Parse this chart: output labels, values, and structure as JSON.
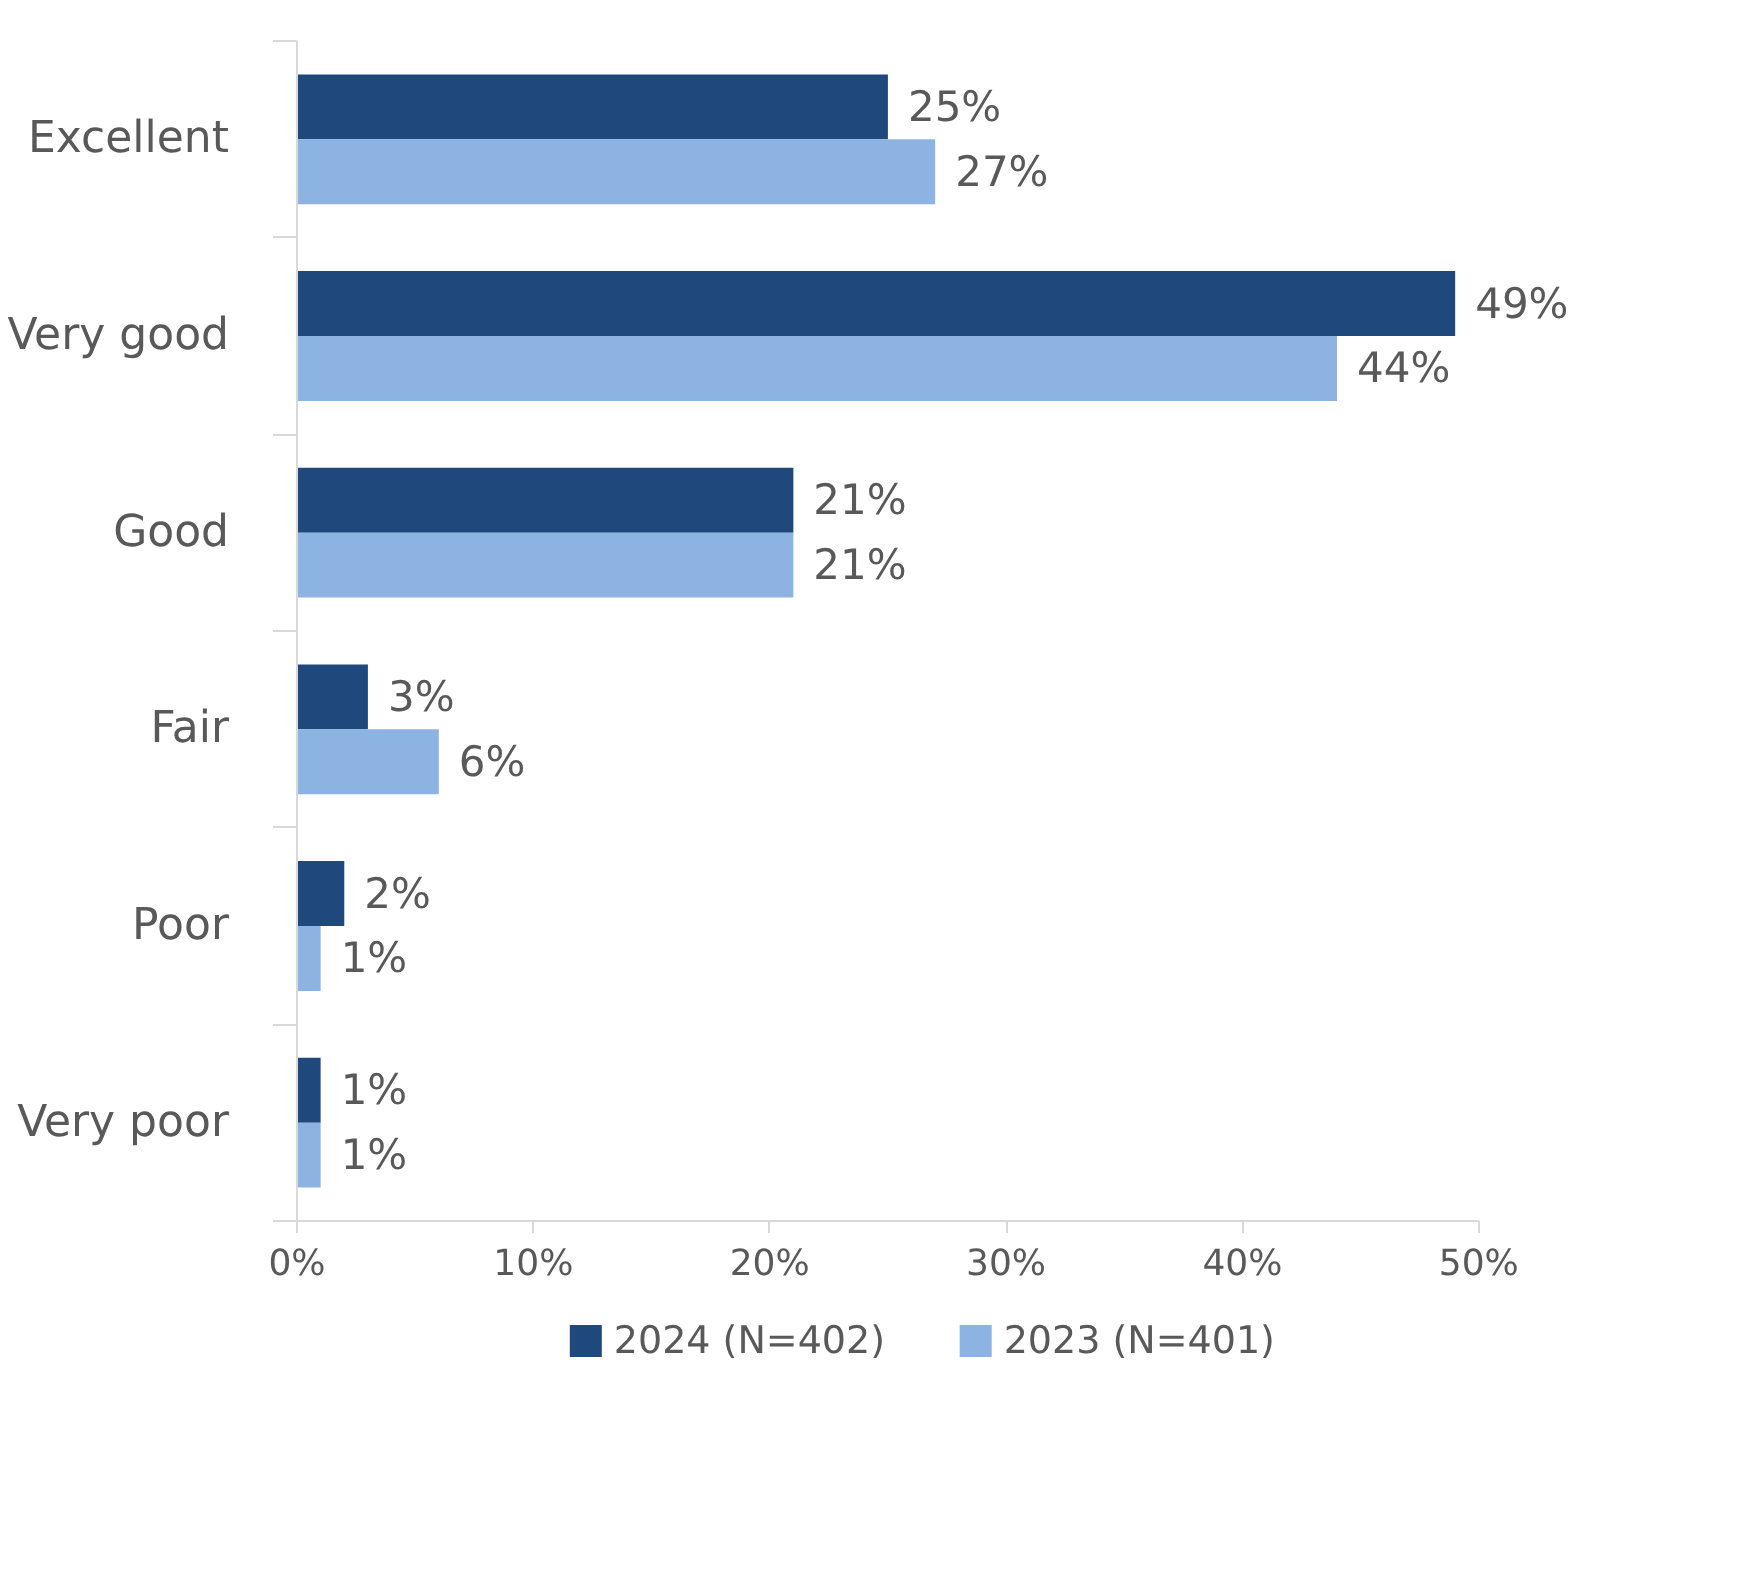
{
  "chart_data": {
    "type": "bar",
    "orientation": "horizontal",
    "categories": [
      "Excellent",
      "Very good",
      "Good",
      "Fair",
      "Poor",
      "Very poor"
    ],
    "series": [
      {
        "name": "2024 (N=402)",
        "color": "#1f497d",
        "values": [
          25,
          49,
          21,
          3,
          2,
          1
        ],
        "value_labels": [
          "25%",
          "49%",
          "21%",
          "3%",
          "2%",
          "1%"
        ]
      },
      {
        "name": "2023 (N=401)",
        "color": "#8db3e2",
        "values": [
          27,
          44,
          21,
          6,
          1,
          1
        ],
        "value_labels": [
          "27%",
          "44%",
          "21%",
          "6%",
          "1%",
          "1%"
        ]
      }
    ],
    "xlim": [
      0,
      50
    ],
    "xticks": [
      {
        "value": 0,
        "label": "0%"
      },
      {
        "value": 10,
        "label": "10%"
      },
      {
        "value": 20,
        "label": "20%"
      },
      {
        "value": 30,
        "label": "30%"
      },
      {
        "value": 40,
        "label": "40%"
      },
      {
        "value": 50,
        "label": "50%"
      }
    ],
    "grid": false,
    "legend": "bottom"
  }
}
